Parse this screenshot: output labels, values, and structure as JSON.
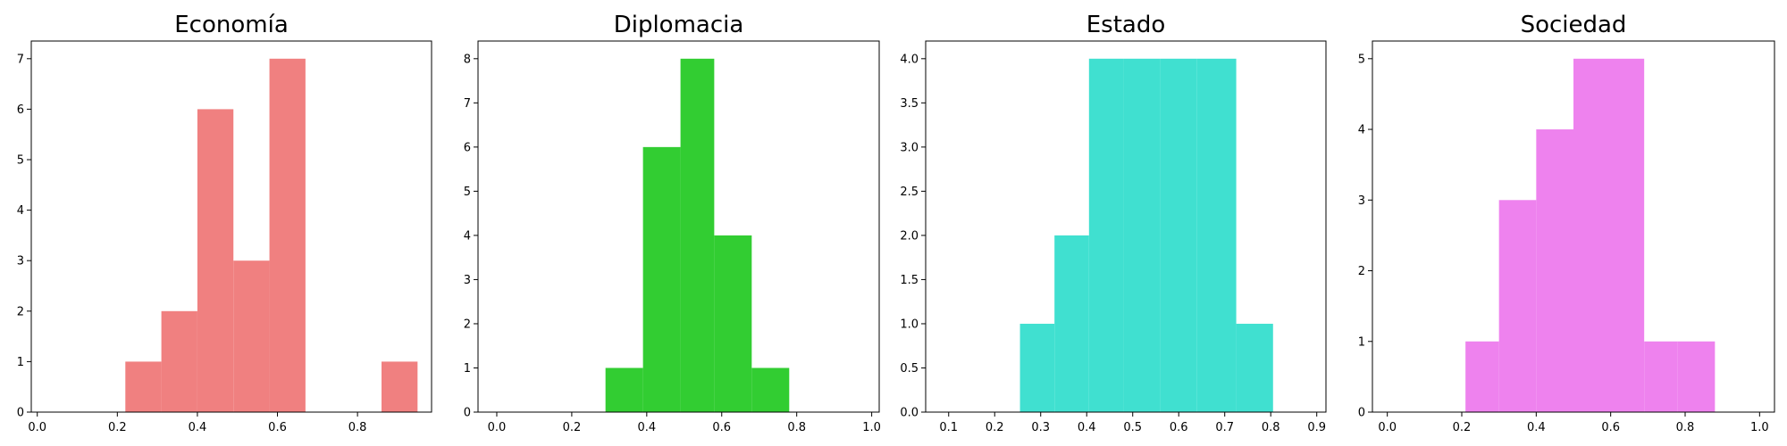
{
  "chart_data": [
    {
      "type": "bar",
      "title": "Economía",
      "xlim": [
        -0.015,
        0.985
      ],
      "ylim": [
        0,
        7.35
      ],
      "xticks": [
        "0.0",
        "0.2",
        "0.4",
        "0.6",
        "0.8"
      ],
      "yticks": [
        "0",
        "1",
        "2",
        "3",
        "4",
        "5",
        "6",
        "7"
      ],
      "color": "#f08080",
      "bins": [
        {
          "x0": 0.22,
          "x1": 0.31,
          "value": 1
        },
        {
          "x0": 0.31,
          "x1": 0.4,
          "value": 2
        },
        {
          "x0": 0.4,
          "x1": 0.49,
          "value": 6
        },
        {
          "x0": 0.49,
          "x1": 0.58,
          "value": 3
        },
        {
          "x0": 0.58,
          "x1": 0.67,
          "value": 7
        },
        {
          "x0": 0.86,
          "x1": 0.95,
          "value": 1
        }
      ]
    },
    {
      "type": "bar",
      "title": "Diplomacia",
      "xlim": [
        -0.05,
        1.02
      ],
      "ylim": [
        0,
        8.4
      ],
      "xticks": [
        "0.0",
        "0.2",
        "0.4",
        "0.6",
        "0.8",
        "1.0"
      ],
      "yticks": [
        "0",
        "1",
        "2",
        "3",
        "4",
        "5",
        "6",
        "7",
        "8"
      ],
      "color": "#32cd32",
      "bins": [
        {
          "x0": 0.29,
          "x1": 0.39,
          "value": 1
        },
        {
          "x0": 0.39,
          "x1": 0.49,
          "value": 6
        },
        {
          "x0": 0.49,
          "x1": 0.58,
          "value": 8
        },
        {
          "x0": 0.58,
          "x1": 0.68,
          "value": 4
        },
        {
          "x0": 0.68,
          "x1": 0.78,
          "value": 1
        }
      ]
    },
    {
      "type": "bar",
      "title": "Estado",
      "xlim": [
        0.05,
        0.92
      ],
      "ylim": [
        0,
        4.2
      ],
      "xticks": [
        "0.1",
        "0.2",
        "0.3",
        "0.4",
        "0.5",
        "0.6",
        "0.7",
        "0.8",
        "0.9"
      ],
      "yticks": [
        "0.0",
        "0.5",
        "1.0",
        "1.5",
        "2.0",
        "2.5",
        "3.0",
        "3.5",
        "4.0"
      ],
      "color": "#40e0d0",
      "bins": [
        {
          "x0": 0.255,
          "x1": 0.33,
          "value": 1
        },
        {
          "x0": 0.33,
          "x1": 0.405,
          "value": 2
        },
        {
          "x0": 0.405,
          "x1": 0.48,
          "value": 4
        },
        {
          "x0": 0.48,
          "x1": 0.56,
          "value": 4
        },
        {
          "x0": 0.56,
          "x1": 0.64,
          "value": 4
        },
        {
          "x0": 0.64,
          "x1": 0.725,
          "value": 4
        },
        {
          "x0": 0.725,
          "x1": 0.805,
          "value": 1
        }
      ]
    },
    {
      "type": "bar",
      "title": "Sociedad",
      "xlim": [
        -0.04,
        1.04
      ],
      "ylim": [
        0,
        5.25
      ],
      "xticks": [
        "0.0",
        "0.2",
        "0.4",
        "0.6",
        "0.8",
        "1.0"
      ],
      "yticks": [
        "0",
        "1",
        "2",
        "3",
        "4",
        "5"
      ],
      "color": "#ee82ee",
      "bins": [
        {
          "x0": 0.21,
          "x1": 0.3,
          "value": 1
        },
        {
          "x0": 0.3,
          "x1": 0.4,
          "value": 3
        },
        {
          "x0": 0.4,
          "x1": 0.5,
          "value": 4
        },
        {
          "x0": 0.5,
          "x1": 0.59,
          "value": 5
        },
        {
          "x0": 0.59,
          "x1": 0.69,
          "value": 5
        },
        {
          "x0": 0.69,
          "x1": 0.78,
          "value": 1
        },
        {
          "x0": 0.78,
          "x1": 0.88,
          "value": 1
        }
      ]
    }
  ]
}
